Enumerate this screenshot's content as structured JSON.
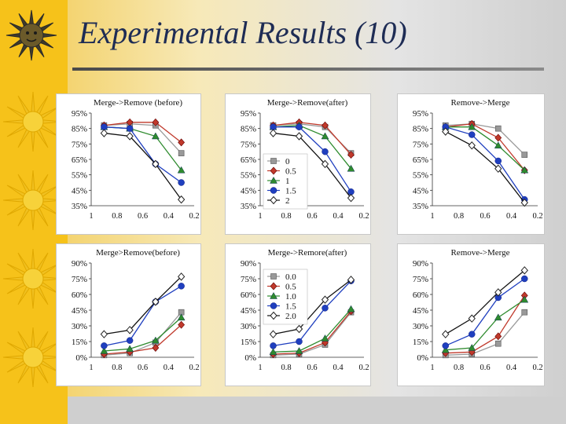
{
  "slide": {
    "title": "Experimental Results (10)"
  },
  "legend_markers": [
    {
      "marker": "square",
      "color": "#999999"
    },
    {
      "marker": "diamond",
      "color": "#c0392b"
    },
    {
      "marker": "triangle",
      "color": "#2e8b2e"
    },
    {
      "marker": "circle",
      "color": "#1f3fbf"
    },
    {
      "marker": "open-diamond",
      "color": "#222222"
    }
  ],
  "chart_data": [
    {
      "type": "line",
      "title": "Merge->Remove (before)",
      "x": [
        "1",
        "0.8",
        "0.6",
        "0.4",
        "0.2"
      ],
      "x_values": [
        0.9,
        0.7,
        0.5,
        0.3
      ],
      "yticks": [
        "95%",
        "85%",
        "75%",
        "65%",
        "55%",
        "45%",
        "35%"
      ],
      "ylim": [
        35,
        95
      ],
      "xlim": [
        1,
        0.2
      ],
      "series": [
        {
          "values": [
            87,
            88,
            87,
            69
          ]
        },
        {
          "values": [
            87,
            89,
            89,
            76
          ]
        },
        {
          "values": [
            86,
            85,
            80,
            58
          ]
        },
        {
          "values": [
            86,
            85,
            62,
            50
          ]
        },
        {
          "values": [
            82,
            80,
            62,
            39
          ]
        }
      ]
    },
    {
      "type": "line",
      "title": "Merge->Remove(after)",
      "x": [
        "1",
        "0.8",
        "0.6",
        "0.4",
        "0.2"
      ],
      "x_values": [
        0.9,
        0.7,
        0.5,
        0.3
      ],
      "yticks": [
        "95%",
        "85%",
        "75%",
        "65%",
        "55%",
        "45%",
        "35%"
      ],
      "ylim": [
        35,
        95
      ],
      "xlim": [
        1,
        0.2
      ],
      "legend": [
        "0",
        "0.5",
        "1",
        "1.5",
        "2"
      ],
      "series": [
        {
          "values": [
            87,
            88,
            86,
            69
          ]
        },
        {
          "values": [
            87,
            89,
            87,
            68
          ]
        },
        {
          "values": [
            86,
            87,
            80,
            59
          ]
        },
        {
          "values": [
            86,
            86,
            70,
            44
          ]
        },
        {
          "values": [
            82,
            80,
            62,
            40
          ]
        }
      ]
    },
    {
      "type": "line",
      "title": "Remove->Merge",
      "x": [
        "1",
        "0.8",
        "0.6",
        "0.4",
        "0.2"
      ],
      "x_values": [
        0.9,
        0.7,
        0.5,
        0.3
      ],
      "yticks": [
        "95%",
        "85%",
        "75%",
        "65%",
        "55%",
        "45%",
        "35%"
      ],
      "ylim": [
        35,
        95
      ],
      "xlim": [
        1,
        0.2
      ],
      "series": [
        {
          "values": [
            87,
            88,
            85,
            68
          ]
        },
        {
          "values": [
            86,
            88,
            79,
            58
          ]
        },
        {
          "values": [
            86,
            86,
            74,
            58
          ]
        },
        {
          "values": [
            86,
            81,
            64,
            39
          ]
        },
        {
          "values": [
            83,
            74,
            59,
            37
          ]
        }
      ]
    },
    {
      "type": "line",
      "title": "Merge>Remove(before)",
      "x": [
        "1",
        "0.8",
        "0.6",
        "0.4",
        "0.2"
      ],
      "x_values": [
        0.9,
        0.7,
        0.5,
        0.3
      ],
      "yticks": [
        "90%",
        "75%",
        "60%",
        "45%",
        "30%",
        "15%",
        "0%"
      ],
      "ylim": [
        0,
        90
      ],
      "xlim": [
        1,
        0.2
      ],
      "series": [
        {
          "values": [
            2,
            4,
            14,
            43
          ]
        },
        {
          "values": [
            3,
            5,
            9,
            31
          ]
        },
        {
          "values": [
            6,
            8,
            16,
            38
          ]
        },
        {
          "values": [
            11,
            16,
            53,
            68
          ]
        },
        {
          "values": [
            22,
            26,
            53,
            77
          ]
        }
      ]
    },
    {
      "type": "line",
      "title": "Merge->Remore(after)",
      "x": [
        "1",
        "0.8",
        "0.6",
        "0.4",
        "0.2"
      ],
      "x_values": [
        0.9,
        0.7,
        0.5,
        0.3
      ],
      "yticks": [
        "90%",
        "75%",
        "60%",
        "45%",
        "30%",
        "15%",
        "0%"
      ],
      "ylim": [
        0,
        90
      ],
      "xlim": [
        1,
        0.2
      ],
      "legend": [
        "0.0",
        "0.5",
        "1.0",
        "1.5",
        "2.0"
      ],
      "series": [
        {
          "values": [
            2,
            3,
            12,
            43
          ]
        },
        {
          "values": [
            3,
            4,
            14,
            44
          ]
        },
        {
          "values": [
            5,
            6,
            18,
            46
          ]
        },
        {
          "values": [
            11,
            15,
            47,
            73
          ]
        },
        {
          "values": [
            22,
            27,
            55,
            74
          ]
        }
      ]
    },
    {
      "type": "line",
      "title": "Remove->Merge",
      "x": [
        "1",
        "0.8",
        "0.6",
        "0.4",
        "0.2"
      ],
      "x_values": [
        0.9,
        0.7,
        0.5,
        0.3
      ],
      "yticks": [
        "90%",
        "75%",
        "60%",
        "45%",
        "30%",
        "15%",
        "0%"
      ],
      "ylim": [
        0,
        90
      ],
      "xlim": [
        1,
        0.2
      ],
      "series": [
        {
          "values": [
            2,
            3,
            13,
            43
          ]
        },
        {
          "values": [
            4,
            5,
            20,
            59
          ]
        },
        {
          "values": [
            7,
            9,
            38,
            55
          ]
        },
        {
          "values": [
            11,
            22,
            57,
            75
          ]
        },
        {
          "values": [
            22,
            37,
            62,
            83
          ]
        }
      ]
    }
  ]
}
